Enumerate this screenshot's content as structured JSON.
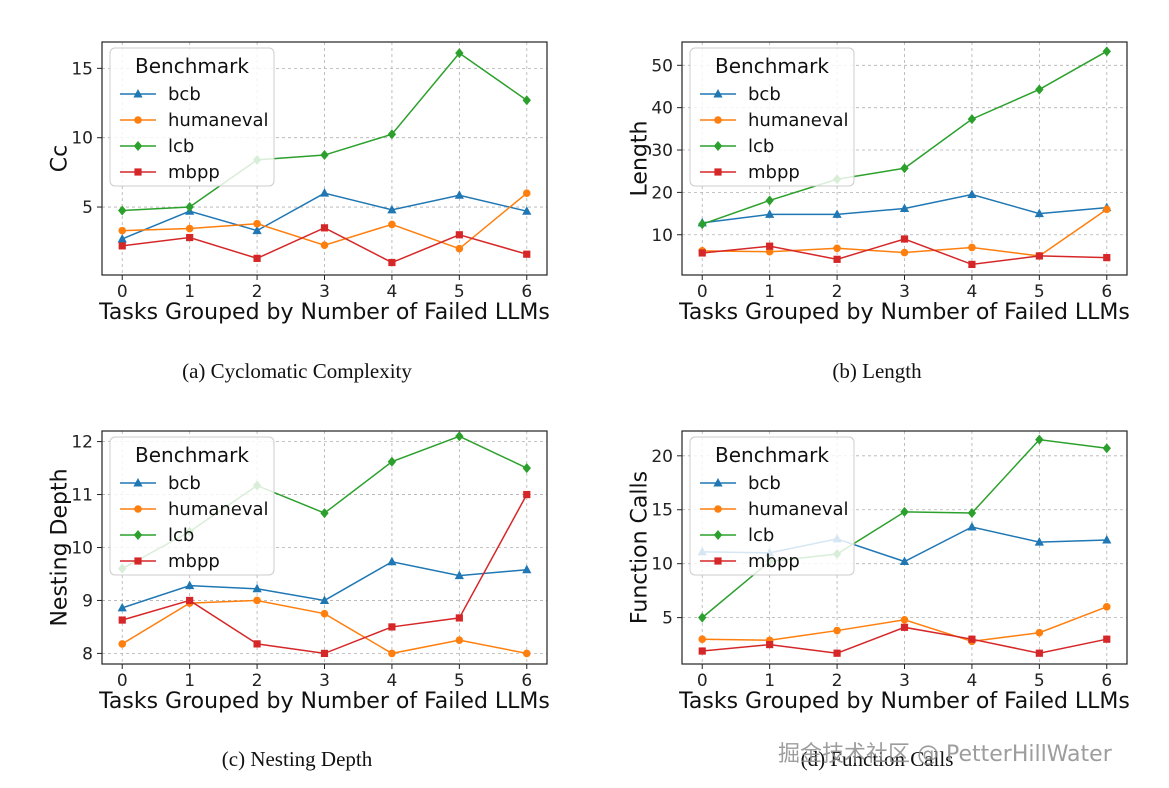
{
  "colors": {
    "bcb": "#1f77b4",
    "humaneval": "#ff7f0e",
    "lcb": "#2ca02c",
    "mbpp": "#d62728"
  },
  "watermark": "掘金技术社区 @ PetterHillWater",
  "chart_data": [
    {
      "type": "line",
      "caption": "(a) Cyclomatic Complexity",
      "xlabel": "Tasks Grouped by Number of Failed LLMs",
      "ylabel": "Cc",
      "x": [
        0,
        1,
        2,
        3,
        4,
        5,
        6
      ],
      "xlim": [
        -0.3,
        6.3
      ],
      "ylim": [
        0.1,
        16.9
      ],
      "yticks": [
        5,
        10,
        15
      ],
      "grid": true,
      "legend_title": "Benchmark",
      "legend_position": "top-left",
      "series": [
        {
          "name": "bcb",
          "marker": "triangle",
          "values": [
            2.7,
            4.7,
            3.3,
            6.0,
            4.8,
            5.85,
            4.7
          ]
        },
        {
          "name": "humaneval",
          "marker": "circle",
          "values": [
            3.3,
            3.45,
            3.8,
            2.25,
            3.75,
            2.0,
            6.0
          ]
        },
        {
          "name": "lcb",
          "marker": "diamond",
          "values": [
            4.75,
            5.0,
            8.4,
            8.75,
            10.25,
            16.1,
            12.7
          ]
        },
        {
          "name": "mbpp",
          "marker": "square",
          "values": [
            2.2,
            2.8,
            1.3,
            3.5,
            1.0,
            3.0,
            1.6
          ]
        }
      ]
    },
    {
      "type": "line",
      "caption": "(b) Length",
      "xlabel": "Tasks Grouped by Number of Failed LLMs",
      "ylabel": "Length",
      "x": [
        0,
        1,
        2,
        3,
        4,
        5,
        6
      ],
      "xlim": [
        -0.3,
        6.3
      ],
      "ylim": [
        0.5,
        55.5
      ],
      "yticks": [
        10,
        20,
        30,
        40,
        50
      ],
      "grid": true,
      "legend_title": "Benchmark",
      "legend_position": "top-left",
      "series": [
        {
          "name": "bcb",
          "marker": "triangle",
          "values": [
            12.8,
            14.8,
            14.8,
            16.2,
            19.5,
            15.0,
            16.4
          ]
        },
        {
          "name": "humaneval",
          "marker": "circle",
          "values": [
            6.2,
            6.0,
            6.8,
            5.8,
            7.0,
            5.0,
            16.0
          ]
        },
        {
          "name": "lcb",
          "marker": "diamond",
          "values": [
            12.5,
            18.1,
            23.1,
            25.7,
            37.3,
            44.3,
            53.3
          ]
        },
        {
          "name": "mbpp",
          "marker": "square",
          "values": [
            5.7,
            7.3,
            4.2,
            9.0,
            3.0,
            5.0,
            4.6
          ]
        }
      ]
    },
    {
      "type": "line",
      "caption": "(c) Nesting Depth",
      "xlabel": "Tasks Grouped by Number of Failed LLMs",
      "ylabel": "Nesting Depth",
      "x": [
        0,
        1,
        2,
        3,
        4,
        5,
        6
      ],
      "xlim": [
        -0.3,
        6.3
      ],
      "ylim": [
        7.8,
        12.2
      ],
      "yticks": [
        8,
        9,
        10,
        11,
        12
      ],
      "grid": true,
      "legend_title": "Benchmark",
      "legend_position": "top-left",
      "series": [
        {
          "name": "bcb",
          "marker": "triangle",
          "values": [
            8.86,
            9.28,
            9.22,
            9.0,
            9.73,
            9.47,
            9.58
          ]
        },
        {
          "name": "humaneval",
          "marker": "circle",
          "values": [
            8.18,
            8.95,
            9.0,
            8.75,
            8.0,
            8.25,
            8.0
          ]
        },
        {
          "name": "lcb",
          "marker": "diamond",
          "values": [
            9.6,
            10.3,
            11.17,
            10.65,
            11.62,
            12.1,
            11.5
          ]
        },
        {
          "name": "mbpp",
          "marker": "square",
          "values": [
            8.63,
            9.0,
            8.18,
            8.0,
            8.5,
            8.67,
            11.0
          ]
        }
      ]
    },
    {
      "type": "line",
      "caption": "(d) Function Calls",
      "xlabel": "Tasks Grouped by Number of Failed LLMs",
      "ylabel": "Function Calls",
      "x": [
        0,
        1,
        2,
        3,
        4,
        5,
        6
      ],
      "xlim": [
        -0.3,
        6.3
      ],
      "ylim": [
        0.7,
        22.3
      ],
      "yticks": [
        5,
        10,
        15,
        20
      ],
      "grid": true,
      "legend_title": "Benchmark",
      "legend_position": "top-left",
      "series": [
        {
          "name": "bcb",
          "marker": "triangle",
          "values": [
            11.1,
            11.0,
            12.3,
            10.2,
            13.4,
            12.0,
            12.2
          ]
        },
        {
          "name": "humaneval",
          "marker": "circle",
          "values": [
            3.0,
            2.9,
            3.8,
            4.8,
            2.8,
            3.6,
            6.0
          ]
        },
        {
          "name": "lcb",
          "marker": "diamond",
          "values": [
            5.0,
            10.2,
            10.9,
            14.8,
            14.7,
            21.5,
            20.7
          ]
        },
        {
          "name": "mbpp",
          "marker": "square",
          "values": [
            1.9,
            2.5,
            1.7,
            4.1,
            3.0,
            1.7,
            3.0
          ]
        }
      ]
    }
  ]
}
